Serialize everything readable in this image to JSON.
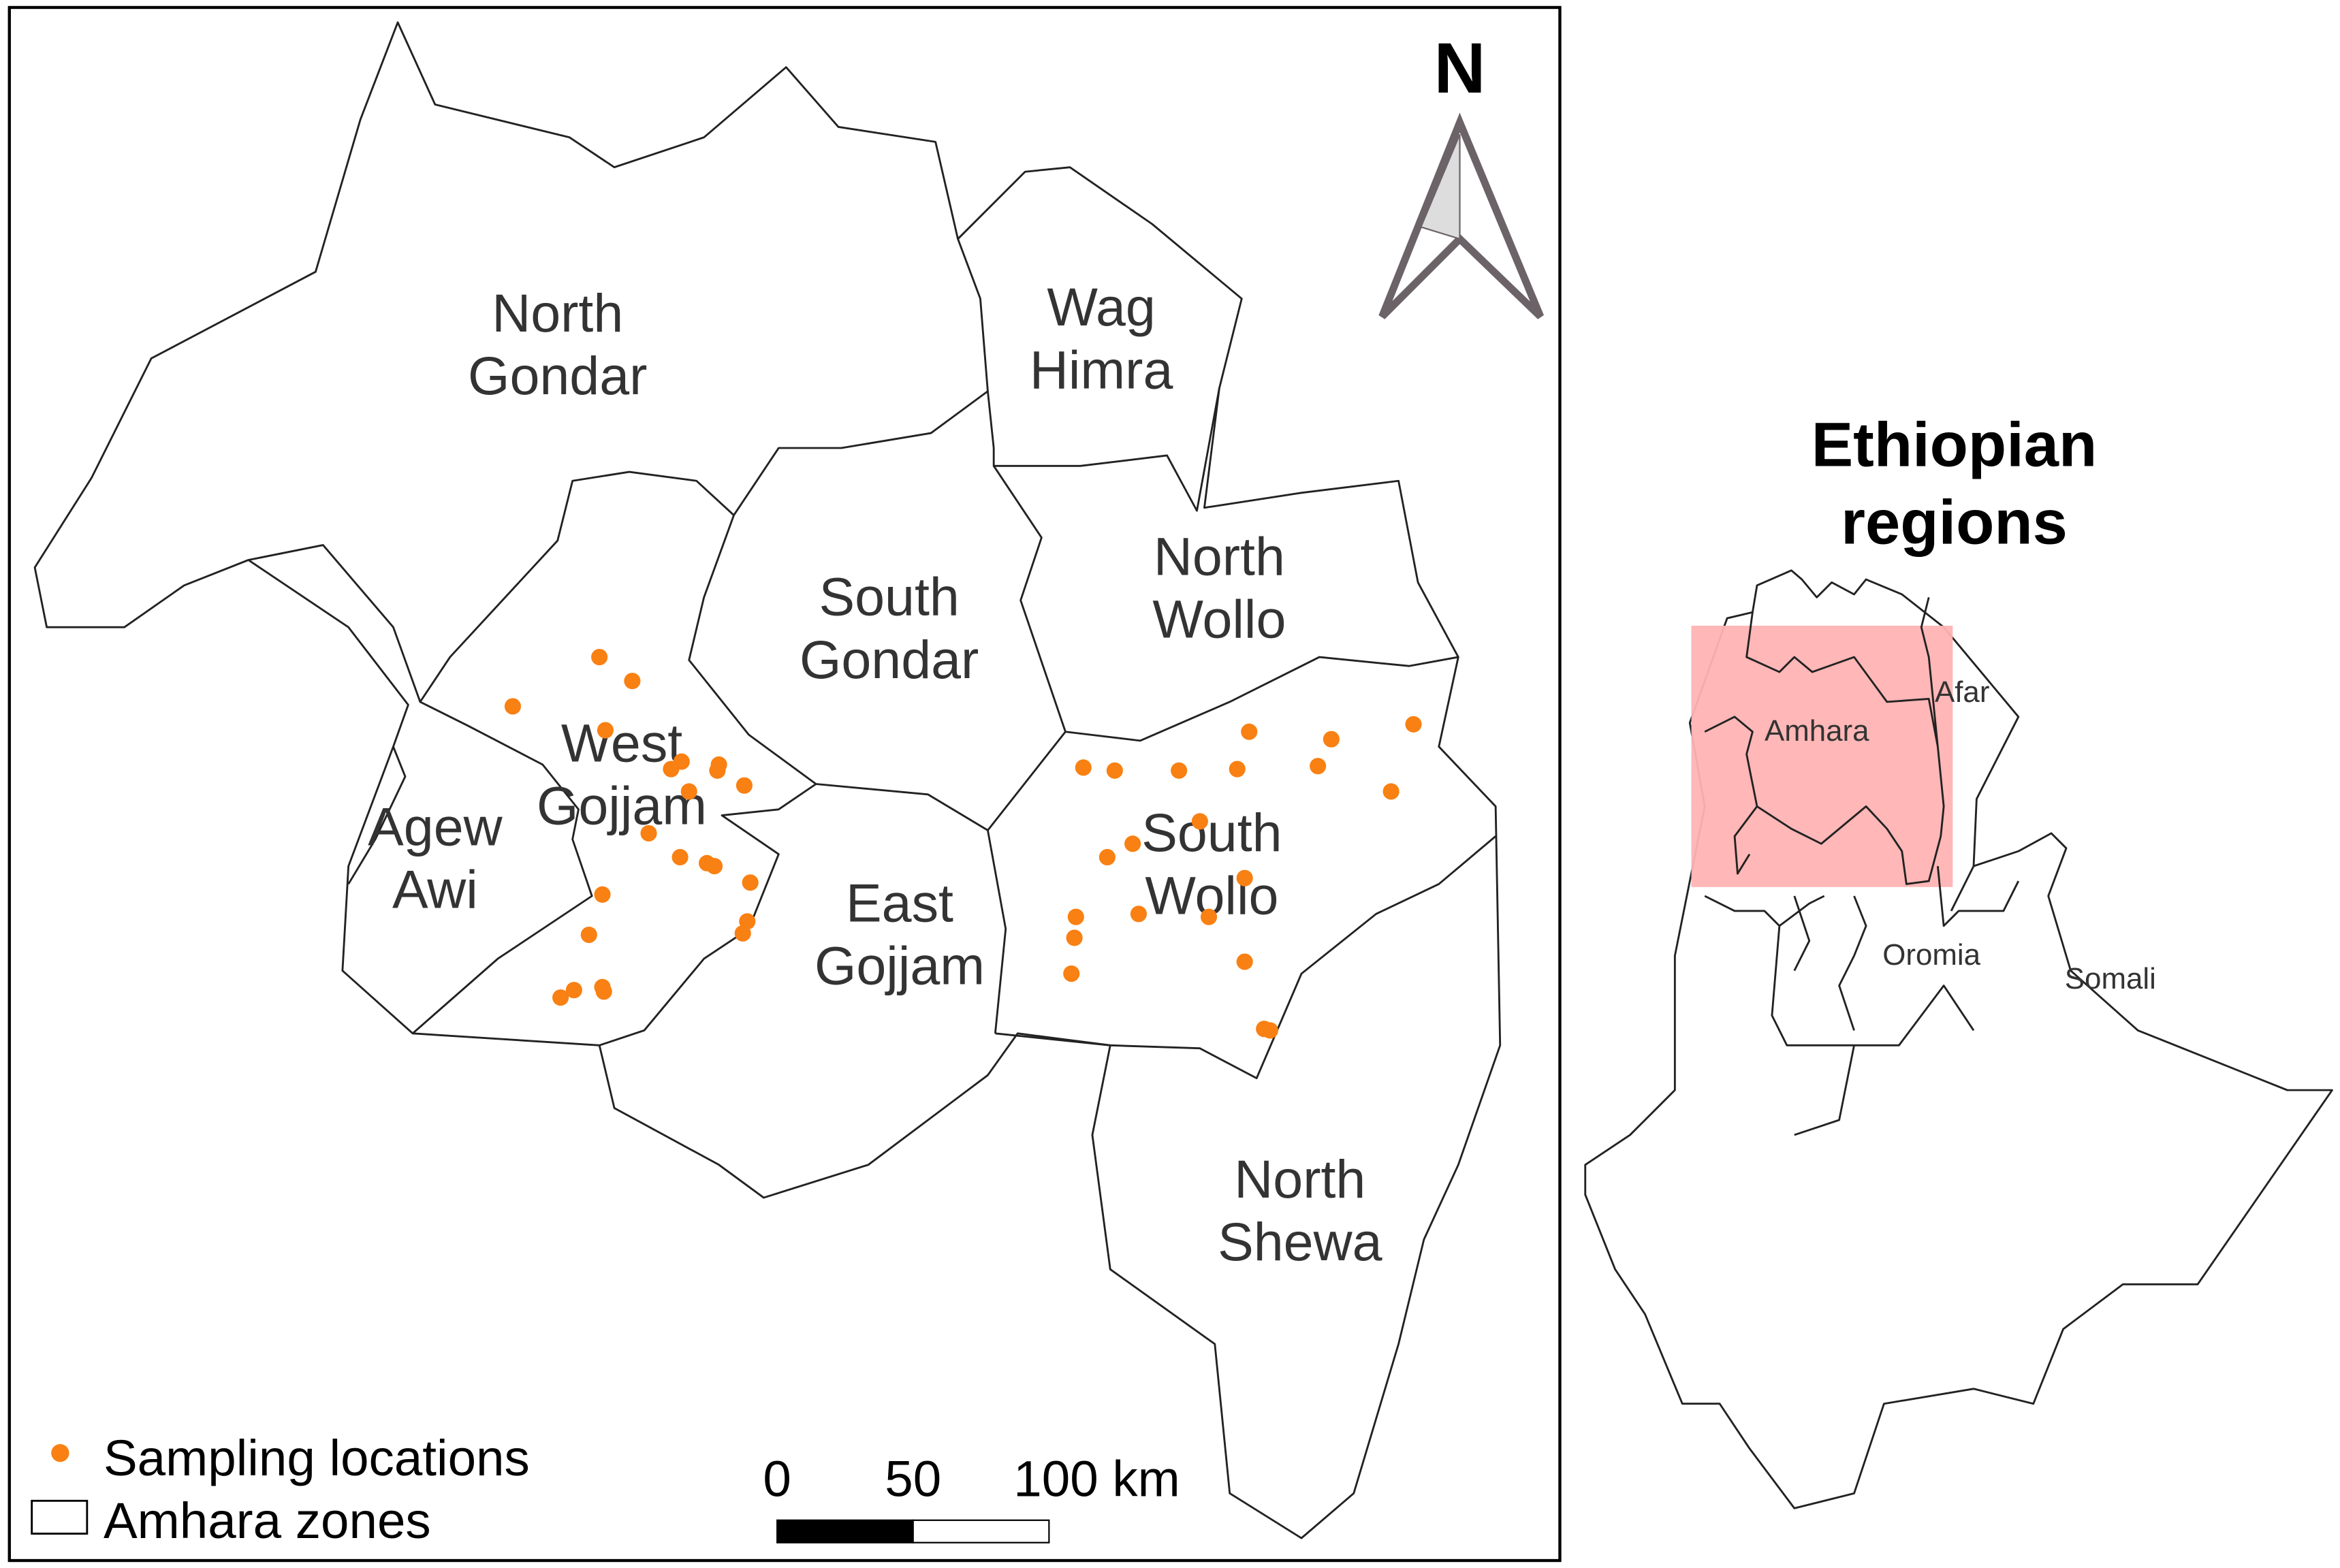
{
  "main_map": {
    "zones": [
      {
        "label_line1": "North",
        "label_line2": "Gondar"
      },
      {
        "label_line1": "Wag",
        "label_line2": "Himra"
      },
      {
        "label_line1": "South",
        "label_line2": "Gondar"
      },
      {
        "label_line1": "North",
        "label_line2": "Wollo"
      },
      {
        "label_line1": "West",
        "label_line2": "Gojjam"
      },
      {
        "label_line1": "Agew",
        "label_line2": "Awi"
      },
      {
        "label_line1": "East",
        "label_line2": "Gojjam"
      },
      {
        "label_line1": "South",
        "label_line2": "Wollo"
      },
      {
        "label_line1": "North",
        "label_line2": "Shewa"
      }
    ],
    "north_arrow_label": "N",
    "point_color": "#F98012",
    "legend": {
      "points": "Sampling locations",
      "zones": "Amhara zones"
    },
    "scale_bar": {
      "ticks": [
        "0",
        "50",
        "100 km"
      ]
    }
  },
  "inset": {
    "title_line1": "Ethiopian",
    "title_line2": "regions",
    "regions": [
      "Afar",
      "Amhara",
      "Oromia",
      "Somali"
    ],
    "highlight_color": "#FFB3B3"
  }
}
